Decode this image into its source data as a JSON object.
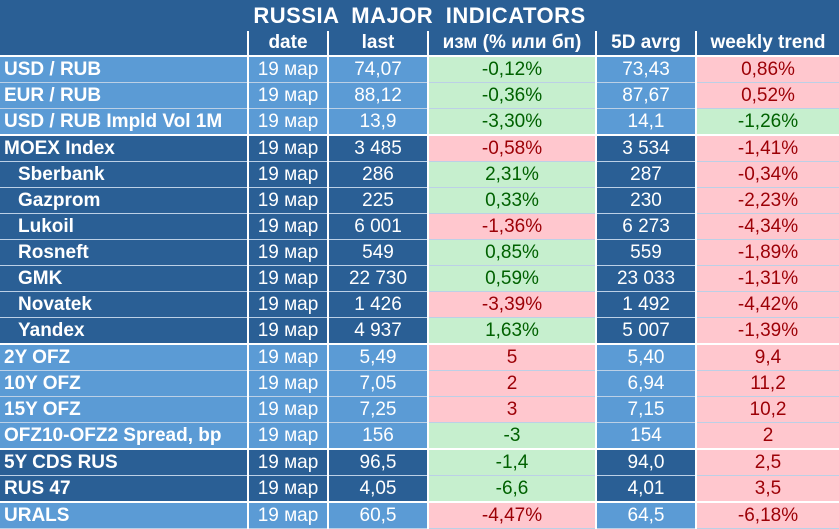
{
  "title": "RUSSIA   MAJOR   INDICATORS",
  "headers": [
    "",
    "date",
    "last",
    "изм (% или бп)",
    "5D avrg",
    "weekly trend"
  ],
  "rows": [
    {
      "name": "USD / RUB",
      "date": "19 мар",
      "last": "74,07",
      "chg": "-0,12%",
      "avg": "73,43",
      "wk": "0,86%",
      "group": "g1",
      "chg_state": "pos",
      "wk_state": "neg",
      "sub": false
    },
    {
      "name": "EUR / RUB",
      "date": "19 мар",
      "last": "88,12",
      "chg": "-0,36%",
      "avg": "87,67",
      "wk": "0,52%",
      "group": "g1",
      "chg_state": "pos",
      "wk_state": "neg",
      "sub": false
    },
    {
      "name": "USD / RUB Impld Vol 1M",
      "date": "19 мар",
      "last": "13,9",
      "chg": "-3,30%",
      "avg": "14,1",
      "wk": "-1,26%",
      "group": "g1",
      "chg_state": "pos",
      "wk_state": "pos",
      "sub": false,
      "end": true
    },
    {
      "name": "MOEX Index",
      "date": "19 мар",
      "last": "3 485",
      "chg": "-0,58%",
      "avg": "3 534",
      "wk": "-1,41%",
      "group": "g2",
      "chg_state": "neg",
      "wk_state": "neg",
      "sub": false
    },
    {
      "name": "Sberbank",
      "date": "19 мар",
      "last": "286",
      "chg": "2,31%",
      "avg": "287",
      "wk": "-0,34%",
      "group": "g2",
      "chg_state": "pos",
      "wk_state": "neg",
      "sub": true
    },
    {
      "name": "Gazprom",
      "date": "19 мар",
      "last": "225",
      "chg": "0,33%",
      "avg": "230",
      "wk": "-2,23%",
      "group": "g2",
      "chg_state": "pos",
      "wk_state": "neg",
      "sub": true
    },
    {
      "name": "Lukoil",
      "date": "19 мар",
      "last": "6 001",
      "chg": "-1,36%",
      "avg": "6 273",
      "wk": "-4,34%",
      "group": "g2",
      "chg_state": "neg",
      "wk_state": "neg",
      "sub": true
    },
    {
      "name": "Rosneft",
      "date": "19 мар",
      "last": "549",
      "chg": "0,85%",
      "avg": "559",
      "wk": "-1,89%",
      "group": "g2",
      "chg_state": "pos",
      "wk_state": "neg",
      "sub": true
    },
    {
      "name": "GMK",
      "date": "19 мар",
      "last": "22 730",
      "chg": "0,59%",
      "avg": "23 033",
      "wk": "-1,31%",
      "group": "g2",
      "chg_state": "pos",
      "wk_state": "neg",
      "sub": true
    },
    {
      "name": "Novatek",
      "date": "19 мар",
      "last": "1 426",
      "chg": "-3,39%",
      "avg": "1 492",
      "wk": "-4,42%",
      "group": "g2",
      "chg_state": "neg",
      "wk_state": "neg",
      "sub": true
    },
    {
      "name": "Yandex",
      "date": "19 мар",
      "last": "4 937",
      "chg": "1,63%",
      "avg": "5 007",
      "wk": "-1,39%",
      "group": "g2",
      "chg_state": "pos",
      "wk_state": "neg",
      "sub": true,
      "end": true
    },
    {
      "name": "2Y OFZ",
      "date": "19 мар",
      "last": "5,49",
      "chg": "5",
      "avg": "5,40",
      "wk": "9,4",
      "group": "g3",
      "chg_state": "neg",
      "wk_state": "neg",
      "sub": false
    },
    {
      "name": "10Y OFZ",
      "date": "19 мар",
      "last": "7,05",
      "chg": "2",
      "avg": "6,94",
      "wk": "11,2",
      "group": "g3",
      "chg_state": "neg",
      "wk_state": "neg",
      "sub": false
    },
    {
      "name": "15Y OFZ",
      "date": "19 мар",
      "last": "7,25",
      "chg": "3",
      "avg": "7,15",
      "wk": "10,2",
      "group": "g3",
      "chg_state": "neg",
      "wk_state": "neg",
      "sub": false
    },
    {
      "name": "OFZ10-OFZ2 Spread, bp",
      "date": "19 мар",
      "last": "156",
      "chg": "-3",
      "avg": "154",
      "wk": "2",
      "group": "g3",
      "chg_state": "pos",
      "wk_state": "neg",
      "sub": false,
      "end": true
    },
    {
      "name": "5Y CDS RUS",
      "date": "19 мар",
      "last": "96,5",
      "chg": "-1,4",
      "avg": "94,0",
      "wk": "2,5",
      "group": "g4",
      "chg_state": "pos",
      "wk_state": "neg",
      "sub": false
    },
    {
      "name": "RUS 47",
      "date": "19 мар",
      "last": "4,05",
      "chg": "-6,6",
      "avg": "4,01",
      "wk": "3,5",
      "group": "g4",
      "chg_state": "pos",
      "wk_state": "neg",
      "sub": false,
      "end": true
    },
    {
      "name": "URALS",
      "date": "19 мар",
      "last": "60,5",
      "chg": "-4,47%",
      "avg": "64,5",
      "wk": "-6,18%",
      "group": "g5",
      "chg_state": "neg",
      "wk_state": "neg",
      "sub": false
    }
  ],
  "colors": {
    "dark_blue": "#2a5f95",
    "light_blue": "#5b9bd5",
    "pos_bg": "#c6efce",
    "pos_fg": "#006100",
    "neg_bg": "#ffc7ce",
    "neg_fg": "#9c0006"
  }
}
